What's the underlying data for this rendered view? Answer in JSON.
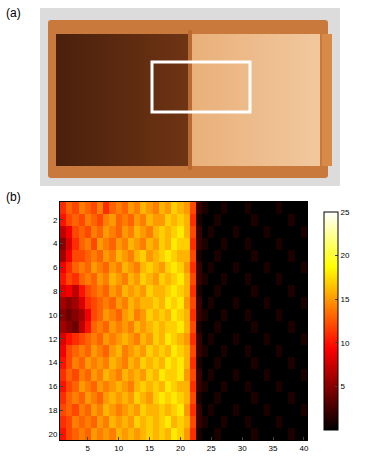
{
  "panels": {
    "a": {
      "label": "(a)"
    },
    "b": {
      "label": "(b)"
    }
  },
  "chart_data": {
    "type": "heatmap",
    "x": [
      1,
      2,
      3,
      4,
      5,
      6,
      7,
      8,
      9,
      10,
      11,
      12,
      13,
      14,
      15,
      16,
      17,
      18,
      19,
      20,
      21,
      22,
      23,
      24,
      25,
      26,
      27,
      28,
      29,
      30,
      31,
      32,
      33,
      34,
      35,
      36,
      37,
      38,
      39,
      40
    ],
    "y": [
      1,
      2,
      3,
      4,
      5,
      6,
      7,
      8,
      9,
      10,
      11,
      12,
      13,
      14,
      15,
      16,
      17,
      18,
      19,
      20
    ],
    "cells": [
      [
        11,
        13,
        12,
        14,
        13,
        12,
        14,
        11,
        13,
        14,
        13,
        15,
        14,
        16,
        15,
        14,
        16,
        15,
        17,
        16,
        15,
        12,
        2,
        1,
        0,
        0,
        1,
        0,
        0,
        0,
        1,
        0,
        0,
        0,
        0,
        1,
        0,
        0,
        0,
        0
      ],
      [
        10,
        12,
        13,
        12,
        14,
        13,
        12,
        14,
        15,
        13,
        14,
        13,
        15,
        14,
        16,
        15,
        15,
        17,
        16,
        17,
        16,
        11,
        1,
        0,
        0,
        1,
        0,
        0,
        0,
        0,
        0,
        1,
        0,
        0,
        0,
        0,
        0,
        1,
        0,
        0
      ],
      [
        7,
        9,
        12,
        13,
        12,
        14,
        13,
        15,
        14,
        13,
        15,
        14,
        16,
        15,
        14,
        16,
        17,
        16,
        17,
        18,
        16,
        12,
        2,
        0,
        1,
        0,
        0,
        0,
        1,
        0,
        0,
        0,
        0,
        1,
        0,
        0,
        0,
        0,
        0,
        1
      ],
      [
        5,
        8,
        11,
        13,
        14,
        12,
        15,
        14,
        13,
        15,
        14,
        16,
        15,
        14,
        16,
        15,
        17,
        16,
        18,
        17,
        17,
        11,
        2,
        1,
        0,
        0,
        1,
        0,
        0,
        0,
        1,
        0,
        0,
        0,
        0,
        1,
        0,
        0,
        0,
        0
      ],
      [
        6,
        9,
        12,
        12,
        13,
        14,
        13,
        15,
        14,
        16,
        15,
        14,
        16,
        17,
        15,
        16,
        17,
        18,
        17,
        16,
        16,
        12,
        1,
        0,
        0,
        1,
        0,
        0,
        0,
        0,
        0,
        1,
        0,
        0,
        0,
        0,
        0,
        1,
        0,
        0
      ],
      [
        9,
        11,
        13,
        14,
        13,
        15,
        14,
        13,
        15,
        14,
        16,
        15,
        14,
        16,
        17,
        16,
        15,
        17,
        18,
        17,
        15,
        11,
        2,
        0,
        1,
        0,
        0,
        0,
        1,
        0,
        0,
        0,
        0,
        1,
        0,
        0,
        0,
        0,
        0,
        1
      ],
      [
        10,
        12,
        11,
        13,
        14,
        13,
        15,
        14,
        16,
        15,
        14,
        16,
        15,
        17,
        16,
        15,
        17,
        16,
        17,
        18,
        16,
        12,
        2,
        1,
        0,
        0,
        1,
        0,
        0,
        0,
        1,
        0,
        0,
        0,
        0,
        1,
        0,
        0,
        0,
        0
      ],
      [
        8,
        9,
        7,
        10,
        12,
        13,
        14,
        13,
        15,
        14,
        16,
        15,
        16,
        15,
        17,
        16,
        16,
        17,
        18,
        17,
        16,
        11,
        1,
        0,
        0,
        1,
        0,
        0,
        0,
        0,
        0,
        1,
        0,
        0,
        0,
        0,
        0,
        1,
        0,
        0
      ],
      [
        6,
        5,
        6,
        8,
        11,
        12,
        13,
        14,
        13,
        15,
        14,
        16,
        15,
        16,
        16,
        17,
        16,
        18,
        17,
        18,
        15,
        12,
        2,
        0,
        1,
        0,
        0,
        0,
        1,
        0,
        0,
        0,
        0,
        1,
        0,
        0,
        0,
        0,
        0,
        1
      ],
      [
        5,
        4,
        5,
        6,
        9,
        12,
        13,
        15,
        14,
        13,
        15,
        16,
        14,
        15,
        17,
        16,
        17,
        16,
        18,
        17,
        16,
        11,
        2,
        1,
        0,
        0,
        1,
        0,
        0,
        0,
        1,
        0,
        0,
        0,
        0,
        1,
        0,
        0,
        0,
        0
      ],
      [
        6,
        5,
        4,
        7,
        10,
        13,
        14,
        13,
        15,
        14,
        15,
        14,
        16,
        15,
        16,
        17,
        16,
        17,
        17,
        18,
        16,
        12,
        1,
        0,
        0,
        1,
        0,
        0,
        0,
        0,
        0,
        1,
        0,
        0,
        0,
        0,
        0,
        1,
        0,
        0
      ],
      [
        8,
        10,
        11,
        12,
        13,
        14,
        13,
        15,
        14,
        15,
        16,
        15,
        14,
        16,
        15,
        17,
        16,
        18,
        17,
        16,
        15,
        11,
        2,
        0,
        1,
        0,
        0,
        0,
        1,
        0,
        0,
        0,
        0,
        1,
        0,
        0,
        0,
        0,
        0,
        1
      ],
      [
        9,
        12,
        13,
        14,
        13,
        15,
        14,
        13,
        15,
        16,
        14,
        15,
        16,
        15,
        17,
        16,
        17,
        16,
        18,
        17,
        16,
        12,
        2,
        1,
        0,
        0,
        1,
        0,
        0,
        0,
        1,
        0,
        0,
        0,
        0,
        1,
        0,
        0,
        0,
        0
      ],
      [
        10,
        12,
        14,
        13,
        15,
        14,
        15,
        14,
        16,
        15,
        14,
        16,
        15,
        17,
        16,
        17,
        16,
        18,
        17,
        18,
        16,
        11,
        1,
        0,
        0,
        1,
        0,
        0,
        0,
        0,
        0,
        1,
        0,
        0,
        0,
        0,
        0,
        1,
        0,
        0
      ],
      [
        11,
        13,
        12,
        14,
        13,
        15,
        14,
        16,
        15,
        14,
        16,
        15,
        16,
        15,
        17,
        16,
        18,
        17,
        17,
        18,
        15,
        12,
        2,
        0,
        1,
        0,
        0,
        0,
        1,
        0,
        0,
        0,
        0,
        1,
        0,
        0,
        0,
        0,
        0,
        1
      ],
      [
        10,
        12,
        13,
        15,
        14,
        13,
        15,
        14,
        15,
        16,
        15,
        14,
        16,
        17,
        16,
        17,
        16,
        18,
        17,
        16,
        16,
        11,
        2,
        1,
        0,
        0,
        1,
        0,
        0,
        0,
        1,
        0,
        0,
        0,
        0,
        1,
        0,
        0,
        0,
        0
      ],
      [
        11,
        13,
        14,
        13,
        15,
        14,
        13,
        15,
        16,
        15,
        16,
        15,
        17,
        16,
        15,
        17,
        18,
        17,
        18,
        17,
        16,
        12,
        1,
        0,
        0,
        1,
        0,
        0,
        0,
        0,
        0,
        1,
        0,
        0,
        0,
        0,
        0,
        1,
        0,
        0
      ],
      [
        12,
        13,
        12,
        14,
        13,
        15,
        14,
        16,
        15,
        14,
        15,
        16,
        15,
        17,
        16,
        16,
        17,
        16,
        17,
        18,
        15,
        11,
        2,
        0,
        1,
        0,
        0,
        0,
        1,
        0,
        0,
        0,
        0,
        1,
        0,
        0,
        0,
        0,
        0,
        1
      ],
      [
        11,
        12,
        14,
        13,
        14,
        13,
        15,
        14,
        16,
        15,
        16,
        15,
        17,
        16,
        17,
        16,
        17,
        18,
        16,
        17,
        16,
        12,
        2,
        1,
        0,
        0,
        1,
        0,
        0,
        0,
        1,
        0,
        0,
        0,
        0,
        1,
        0,
        0,
        0,
        0
      ],
      [
        10,
        12,
        13,
        14,
        13,
        15,
        14,
        15,
        14,
        16,
        15,
        16,
        15,
        16,
        17,
        16,
        17,
        16,
        18,
        17,
        15,
        11,
        1,
        0,
        0,
        1,
        0,
        0,
        0,
        0,
        0,
        1,
        0,
        0,
        0,
        0,
        0,
        1,
        0,
        0
      ]
    ],
    "xlim": [
      0.5,
      40.5
    ],
    "xticks": [
      5,
      10,
      15,
      20,
      25,
      30,
      35,
      40
    ],
    "ylim": [
      0.5,
      20.5
    ],
    "yticks": [
      2,
      4,
      6,
      8,
      10,
      12,
      14,
      16,
      18,
      20
    ],
    "zlim": [
      0,
      25
    ],
    "zticks": [
      5,
      10,
      15,
      20,
      25
    ]
  }
}
